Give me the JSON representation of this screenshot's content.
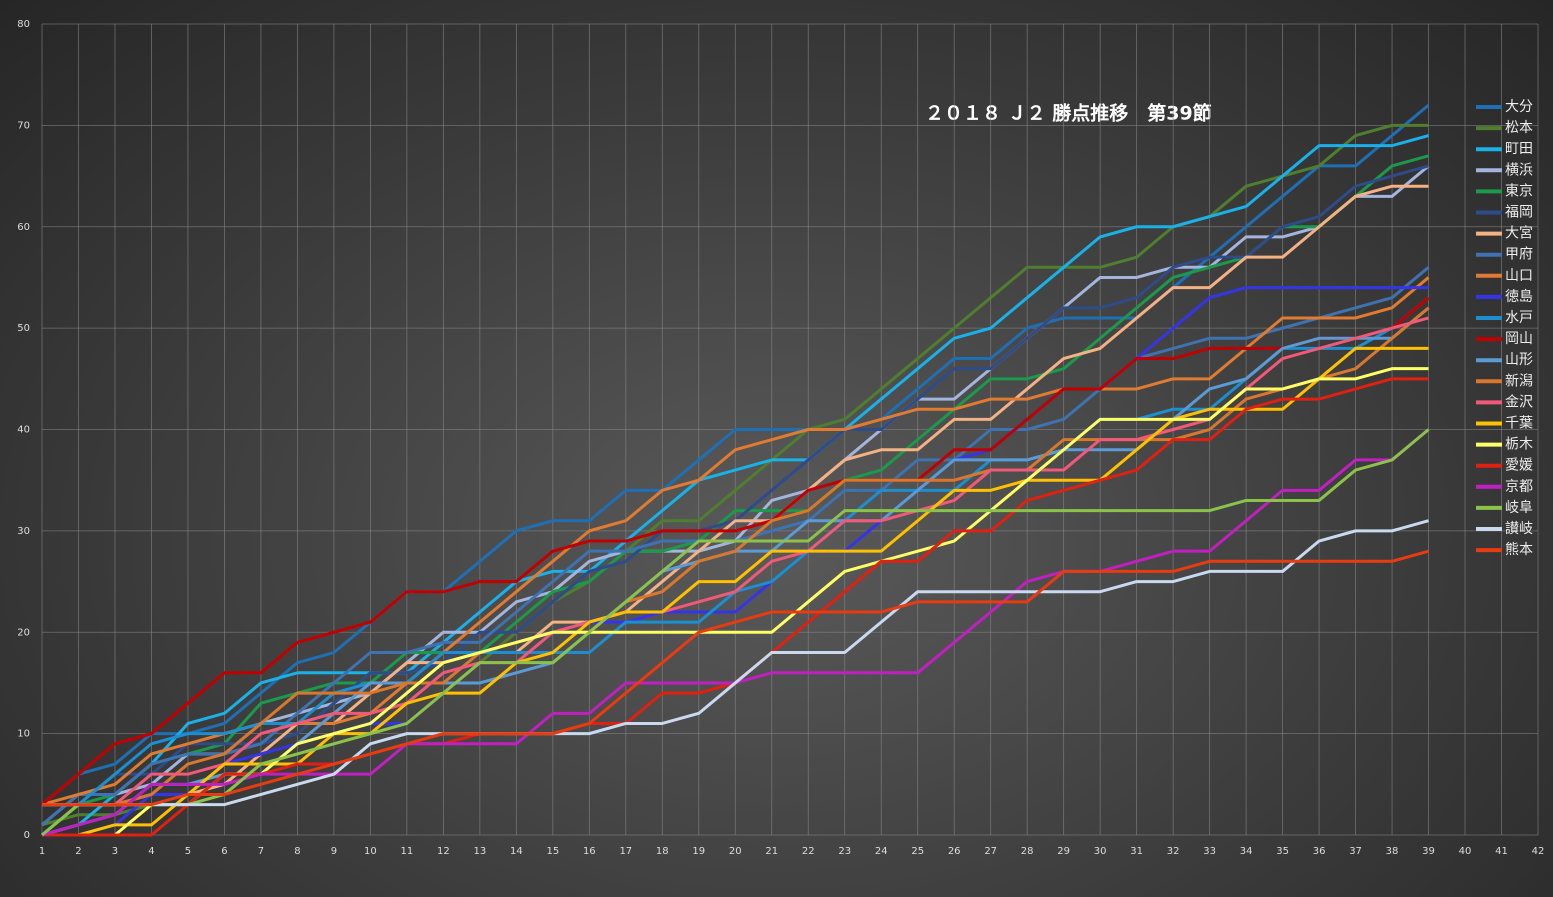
{
  "chart_data": {
    "type": "line",
    "title": "２０１８ Ｊ２ 勝点推移　第39節",
    "x": [
      1,
      2,
      3,
      4,
      5,
      6,
      7,
      8,
      9,
      10,
      11,
      12,
      13,
      14,
      15,
      16,
      17,
      18,
      19,
      20,
      21,
      22,
      23,
      24,
      25,
      26,
      27,
      28,
      29,
      30,
      31,
      32,
      33,
      34,
      35,
      36,
      37,
      38,
      39
    ],
    "xlim": [
      1,
      42
    ],
    "xticks": [
      1,
      2,
      3,
      4,
      5,
      6,
      7,
      8,
      9,
      10,
      11,
      12,
      13,
      14,
      15,
      16,
      17,
      18,
      19,
      20,
      21,
      22,
      23,
      24,
      25,
      26,
      27,
      28,
      29,
      30,
      31,
      32,
      33,
      34,
      35,
      36,
      37,
      38,
      39,
      40,
      41,
      42
    ],
    "ylim": [
      0,
      80
    ],
    "yticks": [
      0,
      10,
      20,
      30,
      40,
      50,
      60,
      70,
      80
    ],
    "grid": true,
    "legend": "right",
    "series": [
      {
        "name": "大分",
        "color": "#1f6fb5",
        "values": [
          3,
          6,
          7,
          10,
          10,
          11,
          14,
          17,
          18,
          21,
          24,
          24,
          27,
          30,
          31,
          31,
          34,
          34,
          37,
          40,
          40,
          40,
          40,
          41,
          44,
          47,
          47,
          50,
          51,
          51,
          51,
          54,
          57,
          60,
          63,
          66,
          66,
          69,
          72
        ]
      },
      {
        "name": "松本",
        "color": "#4f7f2e",
        "values": [
          1,
          2,
          2,
          3,
          3,
          4,
          7,
          8,
          9,
          10,
          11,
          14,
          17,
          20,
          23,
          25,
          28,
          31,
          31,
          34,
          37,
          40,
          41,
          44,
          47,
          50,
          53,
          56,
          56,
          56,
          57,
          60,
          61,
          64,
          65,
          66,
          69,
          70,
          70
        ]
      },
      {
        "name": "町田",
        "color": "#1ab0e8",
        "values": [
          0,
          1,
          4,
          7,
          11,
          12,
          15,
          16,
          16,
          16,
          16,
          19,
          22,
          25,
          26,
          26,
          29,
          32,
          35,
          36,
          37,
          37,
          40,
          43,
          46,
          49,
          50,
          53,
          56,
          59,
          60,
          60,
          61,
          62,
          65,
          68,
          68,
          68,
          69
        ]
      },
      {
        "name": "横浜",
        "color": "#a3b4dd",
        "values": [
          1,
          4,
          4,
          5,
          8,
          8,
          11,
          12,
          13,
          14,
          17,
          20,
          20,
          23,
          24,
          27,
          28,
          28,
          28,
          29,
          33,
          34,
          37,
          40,
          43,
          43,
          46,
          49,
          52,
          55,
          55,
          56,
          56,
          59,
          59,
          60,
          63,
          63,
          66
        ]
      },
      {
        "name": "東京",
        "color": "#1a9a4a",
        "values": [
          0,
          3,
          4,
          7,
          8,
          9,
          13,
          14,
          15,
          15,
          18,
          18,
          18,
          21,
          24,
          25,
          28,
          28,
          29,
          32,
          32,
          32,
          35,
          36,
          39,
          42,
          45,
          45,
          46,
          49,
          52,
          55,
          56,
          57,
          60,
          60,
          63,
          66,
          67
        ]
      },
      {
        "name": "福岡",
        "color": "#2e4b8a",
        "values": [
          3,
          3,
          6,
          6,
          9,
          9,
          9,
          10,
          13,
          16,
          16,
          17,
          20,
          20,
          23,
          26,
          27,
          30,
          30,
          31,
          34,
          37,
          40,
          40,
          43,
          46,
          46,
          49,
          52,
          52,
          53,
          56,
          57,
          57,
          60,
          61,
          64,
          65,
          66
        ]
      },
      {
        "name": "大宮",
        "color": "#f4b183",
        "values": [
          0,
          3,
          3,
          4,
          4,
          5,
          8,
          11,
          11,
          14,
          17,
          17,
          18,
          18,
          21,
          21,
          22,
          25,
          28,
          31,
          31,
          34,
          37,
          38,
          38,
          41,
          41,
          44,
          47,
          48,
          51,
          54,
          54,
          57,
          57,
          60,
          63,
          64,
          64
        ]
      },
      {
        "name": "甲府",
        "color": "#3e72b0",
        "values": [
          1,
          4,
          4,
          7,
          8,
          8,
          9,
          12,
          15,
          18,
          18,
          19,
          19,
          22,
          25,
          28,
          28,
          29,
          29,
          29,
          30,
          31,
          34,
          34,
          37,
          37,
          40,
          40,
          41,
          44,
          47,
          48,
          49,
          49,
          50,
          51,
          52,
          53,
          56
        ]
      },
      {
        "name": "山口",
        "color": "#e07b31",
        "values": [
          3,
          4,
          5,
          8,
          9,
          10,
          11,
          11,
          11,
          12,
          15,
          18,
          21,
          24,
          27,
          30,
          31,
          34,
          35,
          38,
          39,
          40,
          40,
          41,
          42,
          42,
          43,
          43,
          44,
          44,
          44,
          45,
          45,
          48,
          51,
          51,
          51,
          52,
          55
        ]
      },
      {
        "name": "徳島",
        "color": "#3535e8",
        "values": [
          0,
          0,
          1,
          4,
          4,
          7,
          8,
          9,
          10,
          11,
          11,
          14,
          17,
          17,
          20,
          21,
          21,
          22,
          22,
          22,
          25,
          28,
          28,
          31,
          34,
          37,
          38,
          41,
          44,
          44,
          47,
          50,
          53,
          54,
          54,
          54,
          54,
          54,
          54
        ]
      },
      {
        "name": "水戸",
        "color": "#1b8fd0",
        "values": [
          0,
          3,
          6,
          9,
          10,
          10,
          11,
          11,
          14,
          15,
          15,
          18,
          18,
          18,
          18,
          18,
          21,
          21,
          21,
          24,
          25,
          28,
          31,
          34,
          34,
          34,
          37,
          37,
          38,
          41,
          41,
          42,
          42,
          45,
          48,
          48,
          48,
          50,
          53
        ]
      },
      {
        "name": "岡山",
        "color": "#c00000",
        "values": [
          3,
          6,
          9,
          10,
          13,
          16,
          16,
          19,
          20,
          21,
          24,
          24,
          25,
          25,
          28,
          29,
          29,
          30,
          30,
          30,
          31,
          34,
          35,
          35,
          35,
          38,
          38,
          41,
          44,
          44,
          47,
          47,
          48,
          48,
          48,
          49,
          49,
          50,
          53
        ]
      },
      {
        "name": "山形",
        "color": "#5b9bd5",
        "values": [
          0,
          1,
          2,
          5,
          5,
          6,
          6,
          9,
          12,
          15,
          15,
          15,
          15,
          16,
          17,
          20,
          23,
          26,
          27,
          28,
          28,
          31,
          31,
          31,
          34,
          37,
          37,
          37,
          38,
          38,
          38,
          41,
          44,
          45,
          48,
          49,
          49,
          49,
          52
        ]
      },
      {
        "name": "新潟",
        "color": "#d9782d",
        "values": [
          3,
          3,
          3,
          4,
          7,
          8,
          11,
          14,
          14,
          14,
          15,
          15,
          18,
          19,
          20,
          20,
          23,
          24,
          27,
          28,
          31,
          32,
          35,
          35,
          35,
          35,
          36,
          36,
          39,
          39,
          39,
          39,
          40,
          43,
          44,
          45,
          46,
          49,
          52
        ]
      },
      {
        "name": "金沢",
        "color": "#f05a78",
        "values": [
          3,
          3,
          3,
          6,
          6,
          7,
          10,
          11,
          12,
          12,
          13,
          16,
          17,
          17,
          20,
          21,
          22,
          22,
          23,
          24,
          27,
          28,
          31,
          31,
          32,
          33,
          36,
          36,
          36,
          39,
          39,
          40,
          41,
          44,
          47,
          48,
          49,
          50,
          51
        ]
      },
      {
        "name": "千葉",
        "color": "#ffc000",
        "values": [
          0,
          0,
          1,
          1,
          4,
          7,
          7,
          7,
          10,
          10,
          13,
          14,
          14,
          17,
          18,
          21,
          22,
          22,
          25,
          25,
          28,
          28,
          28,
          28,
          31,
          34,
          34,
          35,
          35,
          35,
          38,
          41,
          42,
          42,
          42,
          45,
          48,
          48,
          48
        ]
      },
      {
        "name": "栃木",
        "color": "#ffff66",
        "values": [
          0,
          0,
          0,
          3,
          3,
          6,
          6,
          9,
          10,
          11,
          14,
          17,
          18,
          19,
          20,
          20,
          20,
          20,
          20,
          20,
          20,
          23,
          26,
          27,
          28,
          29,
          32,
          35,
          38,
          41,
          41,
          41,
          41,
          44,
          44,
          45,
          45,
          46,
          46
        ]
      },
      {
        "name": "愛媛",
        "color": "#e02010",
        "values": [
          0,
          0,
          0,
          0,
          3,
          6,
          6,
          7,
          7,
          8,
          9,
          9,
          10,
          10,
          10,
          11,
          11,
          14,
          14,
          15,
          18,
          21,
          24,
          27,
          27,
          30,
          30,
          33,
          34,
          35,
          36,
          39,
          39,
          42,
          43,
          43,
          44,
          45,
          45
        ]
      },
      {
        "name": "京都",
        "color": "#c020c0",
        "values": [
          0,
          1,
          2,
          5,
          5,
          5,
          6,
          6,
          6,
          6,
          9,
          9,
          9,
          9,
          12,
          12,
          15,
          15,
          15,
          15,
          16,
          16,
          16,
          16,
          16,
          19,
          22,
          25,
          26,
          26,
          27,
          28,
          28,
          31,
          34,
          34,
          37,
          37,
          40
        ]
      },
      {
        "name": "岐阜",
        "color": "#8bc34a",
        "values": [
          0,
          3,
          3,
          3,
          3,
          4,
          7,
          8,
          9,
          10,
          11,
          14,
          17,
          17,
          17,
          20,
          23,
          26,
          29,
          29,
          29,
          29,
          32,
          32,
          32,
          32,
          32,
          32,
          32,
          32,
          32,
          32,
          32,
          33,
          33,
          33,
          36,
          37,
          40
        ]
      },
      {
        "name": "讃岐",
        "color": "#c9d9f0",
        "values": [
          3,
          3,
          3,
          3,
          3,
          3,
          4,
          5,
          6,
          9,
          10,
          10,
          10,
          10,
          10,
          10,
          11,
          11,
          12,
          15,
          18,
          18,
          18,
          21,
          24,
          24,
          24,
          24,
          24,
          24,
          25,
          25,
          26,
          26,
          26,
          29,
          30,
          30,
          31
        ]
      },
      {
        "name": "熊本",
        "color": "#e83c10",
        "values": [
          3,
          3,
          3,
          3,
          4,
          4,
          5,
          6,
          7,
          8,
          9,
          10,
          10,
          10,
          10,
          11,
          14,
          17,
          20,
          21,
          22,
          22,
          22,
          22,
          23,
          23,
          23,
          23,
          26,
          26,
          26,
          26,
          27,
          27,
          27,
          27,
          27,
          27,
          28
        ]
      }
    ]
  }
}
